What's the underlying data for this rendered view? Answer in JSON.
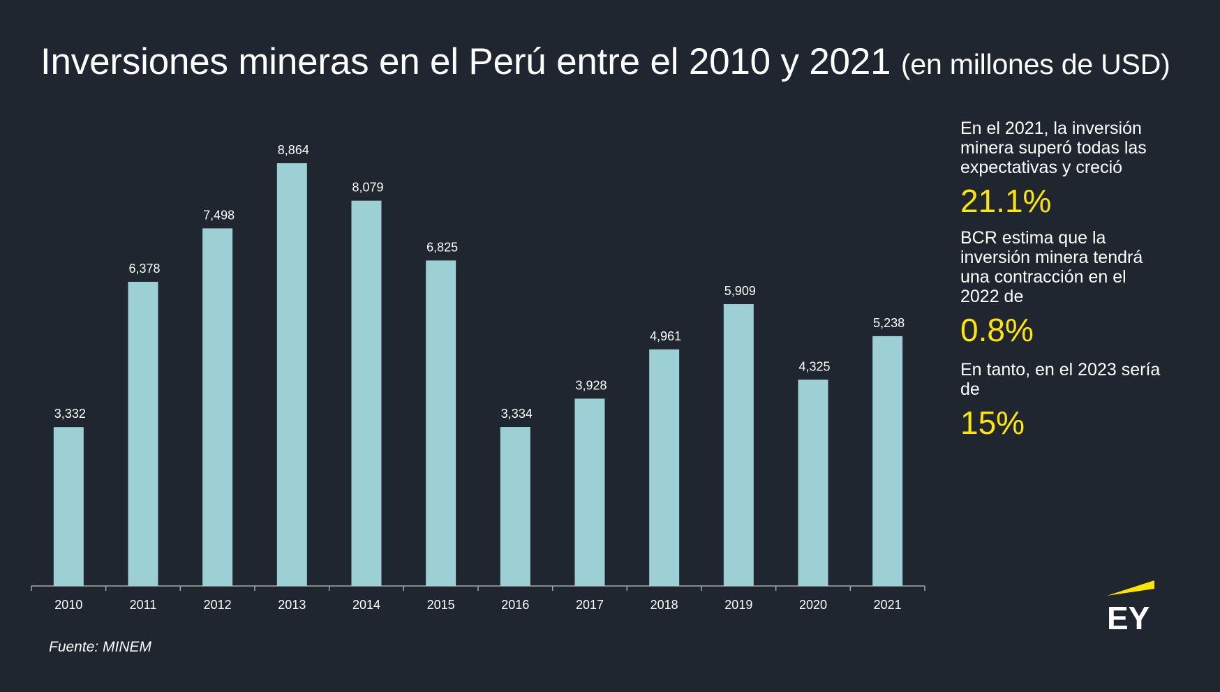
{
  "title": {
    "main": "Inversiones mineras en el Perú entre el 2010 y 2021",
    "unit": "(en millones de USD)"
  },
  "sidebar": {
    "text1": "En el 2021, la inversión minera superó todas las expectativas y creció",
    "value1": "21.1%",
    "text2": "BCR estima que la inversión minera tendrá una contracción en el 2022 de",
    "value2": "0.8%",
    "text3": "En tanto, en el 2023 sería de",
    "value3": "15%"
  },
  "source": "Fuente: MINEM",
  "logo": {
    "text": "EY",
    "accent_color": "#ffe600"
  },
  "colors": {
    "background": "#1f2630",
    "bar": "#9dd0d4",
    "highlight": "#ffe600",
    "axis": "#a6a6a6"
  },
  "chart_data": {
    "type": "bar",
    "title": "Inversiones mineras en el Perú entre el 2010 y 2021",
    "categories": [
      "2010",
      "2011",
      "2012",
      "2013",
      "2014",
      "2015",
      "2016",
      "2017",
      "2018",
      "2019",
      "2020",
      "2021"
    ],
    "values": [
      3332,
      6378,
      7498,
      8864,
      8079,
      6825,
      3334,
      3928,
      4961,
      5909,
      4325,
      5238
    ],
    "labels": [
      "3,332",
      "6,378",
      "7,498",
      "8,864",
      "8,079",
      "6,825",
      "3,334",
      "3,928",
      "4,961",
      "5,909",
      "4,325",
      "5,238"
    ],
    "xlabel": "",
    "ylabel": "",
    "ylim": [
      0,
      8864
    ],
    "grid": false,
    "legend": "none"
  }
}
